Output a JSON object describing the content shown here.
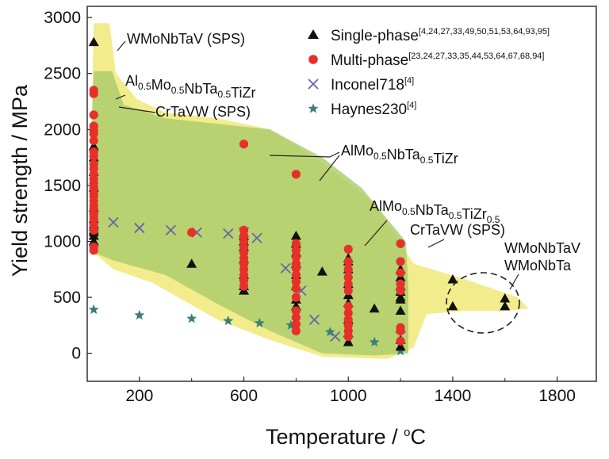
{
  "chart_data": {
    "type": "scatter",
    "xlabel_main": "Temperature / ",
    "xlabel_unit_sup": "o",
    "xlabel_unit": "C",
    "ylabel": "Yield strength / MPa",
    "xlim": [
      0,
      1950
    ],
    "ylim": [
      -250,
      3100
    ],
    "xticks": [
      200,
      600,
      1000,
      1400,
      1800
    ],
    "yticks": [
      0,
      500,
      1000,
      1500,
      2000,
      2500,
      3000
    ],
    "legend_position": "top-right",
    "colors": {
      "single": "#111111",
      "multi": "#e8302a",
      "inconel": "#6b63a8",
      "haynes": "#3b7f78",
      "region_yellow": "#f2ec8c",
      "region_green": "#a9cc6a"
    },
    "legend": [
      {
        "key": "single",
        "name": "Single-phase",
        "refs": "[4,24,27,33,49,50,51,53,64,93,95]"
      },
      {
        "key": "multi",
        "name": "Multi-phase",
        "refs": "[23,24,27,33,35,44,53,64,67,68,94]"
      },
      {
        "key": "inconel",
        "name": "Inconel718",
        "refs": "[4]"
      },
      {
        "key": "haynes",
        "name": "Haynes230",
        "refs": "[4]"
      }
    ],
    "annotations": {
      "wmonbtav_sps": "WMoNbTaV (SPS)",
      "al_top": [
        "Al",
        "0.5",
        "Mo",
        "0.5",
        "NbTa",
        "0.5",
        "TiZr"
      ],
      "crtavw_top": "CrTaVW (SPS)",
      "almo_mid": [
        "AlMo",
        "0.5",
        "NbTa",
        "0.5",
        "TiZr"
      ],
      "almo_right": [
        "AlMo",
        "0.5",
        "NbTa",
        "0.5",
        "TiZr",
        "0.5"
      ],
      "crtavw_right": "CrTaVW (SPS)",
      "wmonbtav": "WMoNbTaV",
      "wmonbta": "WMoNbTa"
    },
    "series": [
      {
        "key": "single",
        "x": [
          25,
          25,
          25,
          25,
          25,
          25,
          25,
          25,
          25,
          25,
          25,
          25,
          25,
          400,
          600,
          600,
          600,
          600,
          600,
          600,
          600,
          800,
          800,
          800,
          800,
          800,
          800,
          800,
          800,
          900,
          1000,
          1000,
          1000,
          1000,
          1000,
          1000,
          1000,
          1000,
          1000,
          1100,
          1200,
          1200,
          1200,
          1200,
          1200,
          1200,
          1200,
          1200,
          1200,
          1200,
          1400,
          1400,
          1600,
          1600
        ],
        "y": [
          2780,
          1850,
          1750,
          1620,
          1480,
          1300,
          1200,
          1130,
          1080,
          1050,
          1000,
          1150,
          1100,
          800,
          1050,
          950,
          840,
          700,
          600,
          560,
          1000,
          1050,
          980,
          900,
          800,
          700,
          600,
          480,
          420,
          730,
          850,
          820,
          750,
          620,
          520,
          450,
          300,
          180,
          100,
          400,
          750,
          680,
          600,
          550,
          480,
          380,
          220,
          120,
          60,
          500,
          660,
          420,
          490,
          420
        ]
      },
      {
        "key": "multi",
        "x": [
          25,
          25,
          25,
          25,
          25,
          25,
          25,
          25,
          25,
          25,
          25,
          25,
          25,
          25,
          25,
          25,
          25,
          25,
          25,
          25,
          25,
          25,
          25,
          25,
          25,
          25,
          25,
          400,
          600,
          600,
          600,
          600,
          600,
          600,
          600,
          600,
          600,
          600,
          600,
          600,
          800,
          800,
          800,
          800,
          800,
          800,
          800,
          800,
          800,
          800,
          800,
          800,
          800,
          800,
          1000,
          1000,
          1000,
          1000,
          1000,
          1000,
          1000,
          1000,
          1000,
          1000,
          1000,
          1000,
          1200,
          1200,
          1200,
          1200,
          1200,
          1200,
          1200,
          1200
        ],
        "y": [
          2350,
          2320,
          2130,
          2030,
          1990,
          1960,
          1900,
          1800,
          1760,
          1690,
          1650,
          1600,
          1560,
          1520,
          1480,
          1430,
          1400,
          1360,
          1320,
          1290,
          1250,
          1230,
          1200,
          1150,
          1100,
          950,
          920,
          1080,
          1870,
          1100,
          1050,
          1000,
          950,
          900,
          850,
          800,
          750,
          700,
          650,
          600,
          1600,
          980,
          920,
          860,
          800,
          760,
          700,
          640,
          580,
          500,
          380,
          320,
          260,
          200,
          930,
          820,
          750,
          680,
          620,
          560,
          420,
          360,
          300,
          250,
          200,
          150,
          980,
          820,
          720,
          620,
          560,
          230,
          200,
          110
        ]
      },
      {
        "key": "inconel",
        "x": [
          100,
          200,
          320,
          420,
          540,
          600,
          650,
          760,
          820,
          870,
          950
        ],
        "y": [
          1170,
          1120,
          1100,
          1080,
          1070,
          1080,
          1030,
          760,
          560,
          300,
          150
        ]
      },
      {
        "key": "haynes",
        "x": [
          25,
          200,
          400,
          540,
          660,
          780,
          930,
          1000,
          1100,
          1200
        ],
        "y": [
          390,
          340,
          310,
          290,
          270,
          250,
          190,
          130,
          100,
          20
        ]
      }
    ]
  }
}
